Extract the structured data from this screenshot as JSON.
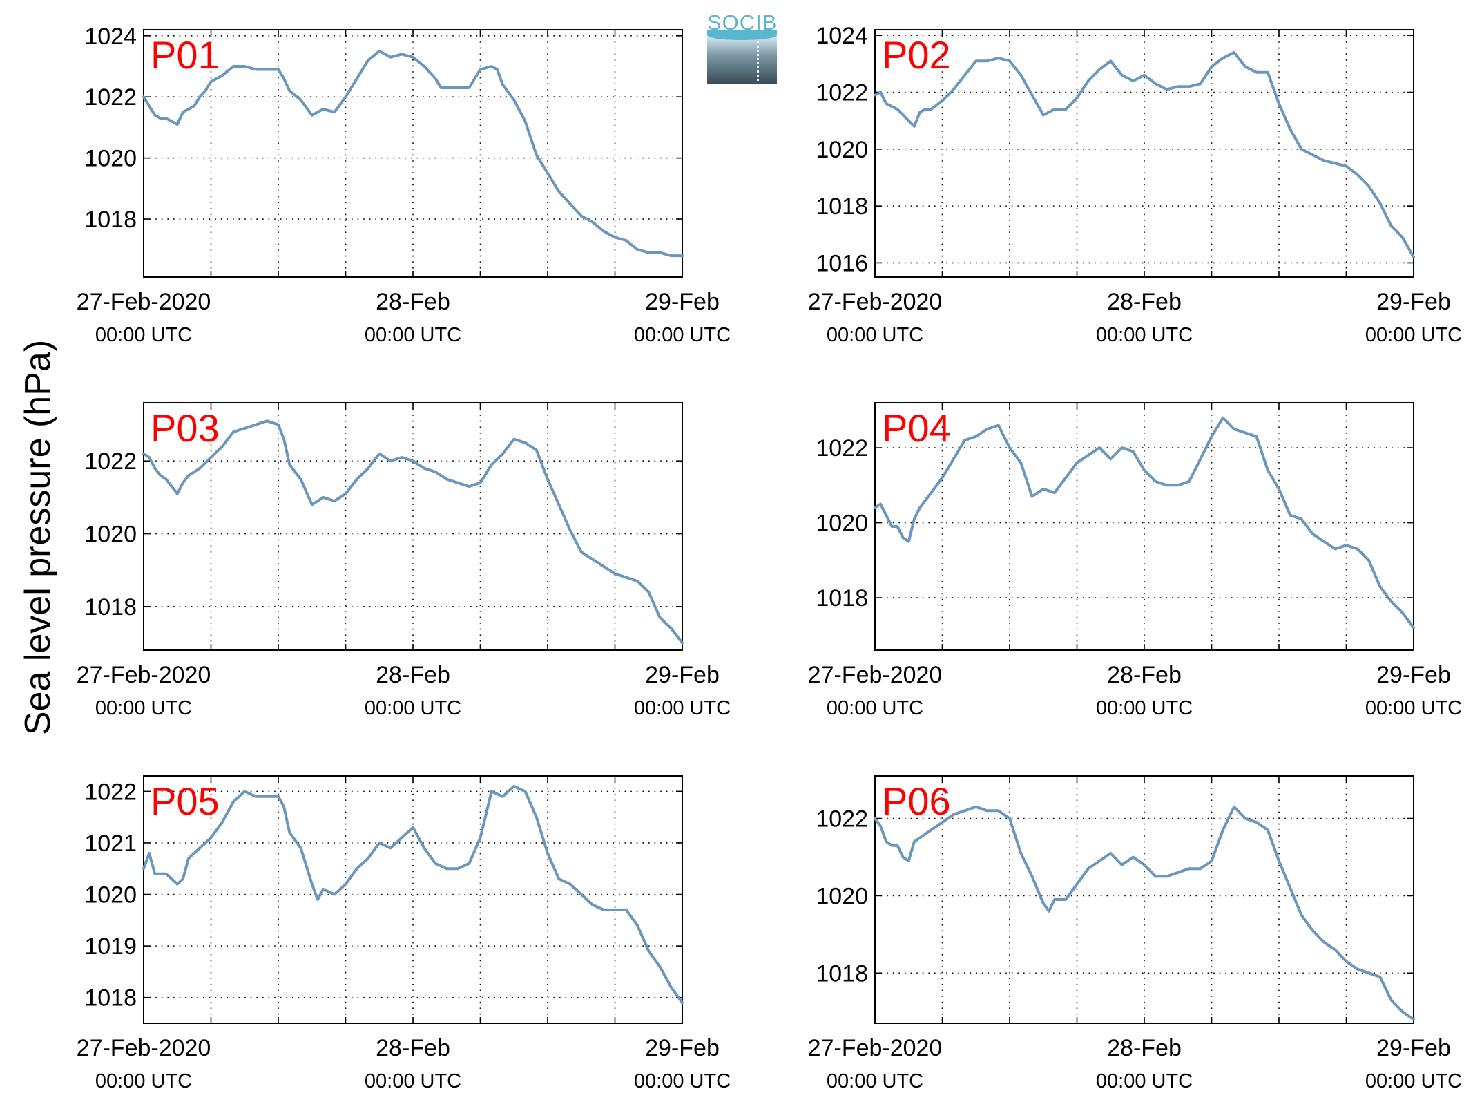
{
  "ylabel": "Sea level pressure (hPa)",
  "logo_text": "SOCIB",
  "colors": {
    "line": "#6b97bd",
    "panel_label": "#ff0000",
    "grid": "#000000"
  },
  "chart_data": [
    {
      "type": "line",
      "panel": "P01",
      "ylim": [
        1016.1,
        1024.2
      ],
      "yticks": [
        1018,
        1020,
        1022,
        1024
      ],
      "xlim": [
        0,
        48
      ],
      "xtick_labels": [
        {
          "x": 0,
          "date": "27-Feb-2020",
          "time": "00:00 UTC"
        },
        {
          "x": 24,
          "date": "28-Feb",
          "time": "00:00 UTC"
        },
        {
          "x": 48,
          "date": "29-Feb",
          "time": "00:00 UTC"
        }
      ],
      "x": [
        0,
        0.5,
        1,
        1.5,
        2,
        2.5,
        3,
        3.5,
        4,
        4.5,
        5,
        5.5,
        6,
        7,
        8,
        9,
        10,
        11,
        12,
        12.5,
        13,
        14,
        15,
        16,
        17,
        18,
        19,
        20,
        21,
        22,
        23,
        24,
        25,
        26,
        26.5,
        27,
        28,
        29,
        30,
        31,
        31.5,
        32,
        33,
        34,
        35,
        36,
        37,
        38,
        39,
        40,
        41,
        42,
        43,
        44,
        45,
        46,
        47,
        48
      ],
      "y": [
        1022,
        1021.7,
        1021.4,
        1021.3,
        1021.3,
        1021.2,
        1021.1,
        1021.5,
        1021.6,
        1021.7,
        1022,
        1022.2,
        1022.5,
        1022.7,
        1023,
        1023,
        1022.9,
        1022.9,
        1022.9,
        1022.6,
        1022.2,
        1021.9,
        1021.4,
        1021.6,
        1021.5,
        1022,
        1022.6,
        1023.2,
        1023.5,
        1023.3,
        1023.4,
        1023.3,
        1023,
        1022.6,
        1022.3,
        1022.3,
        1022.3,
        1022.3,
        1022.9,
        1023,
        1022.9,
        1022.4,
        1021.9,
        1021.2,
        1020.1,
        1019.5,
        1018.9,
        1018.5,
        1018.1,
        1017.9,
        1017.6,
        1017.4,
        1017.3,
        1017,
        1016.9,
        1016.9,
        1016.8,
        1016.8
      ]
    },
    {
      "type": "line",
      "panel": "P02",
      "ylim": [
        1015.5,
        1024.2
      ],
      "yticks": [
        1016,
        1018,
        1020,
        1022,
        1024
      ],
      "xlim": [
        0,
        48
      ],
      "xtick_labels": [
        {
          "x": 0,
          "date": "27-Feb-2020",
          "time": "00:00 UTC"
        },
        {
          "x": 24,
          "date": "28-Feb",
          "time": "00:00 UTC"
        },
        {
          "x": 48,
          "date": "29-Feb",
          "time": "00:00 UTC"
        }
      ],
      "x": [
        0,
        0.5,
        1,
        2,
        3,
        3.5,
        4,
        4.5,
        5,
        6,
        7,
        8,
        9,
        10,
        11,
        12,
        13,
        14,
        15,
        16,
        17,
        18,
        19,
        20,
        21,
        22,
        23,
        24,
        25,
        26,
        27,
        28,
        29,
        30,
        31,
        32,
        33,
        34,
        35,
        36,
        37,
        38,
        39,
        40,
        41,
        42,
        43,
        44,
        45,
        46,
        47,
        48
      ],
      "y": [
        1021.9,
        1022,
        1021.6,
        1021.4,
        1021,
        1020.8,
        1021.3,
        1021.4,
        1021.4,
        1021.7,
        1022.1,
        1022.6,
        1023.1,
        1023.1,
        1023.2,
        1023.1,
        1022.6,
        1021.9,
        1021.2,
        1021.4,
        1021.4,
        1021.8,
        1022.4,
        1022.8,
        1023.1,
        1022.6,
        1022.4,
        1022.6,
        1022.3,
        1022.1,
        1022.2,
        1022.2,
        1022.3,
        1022.9,
        1023.2,
        1023.4,
        1022.9,
        1022.7,
        1022.7,
        1021.6,
        1020.7,
        1020,
        1019.8,
        1019.6,
        1019.5,
        1019.4,
        1019.1,
        1018.7,
        1018.1,
        1017.3,
        1016.9,
        1016.2
      ]
    },
    {
      "type": "line",
      "panel": "P03",
      "ylim": [
        1016.8,
        1023.6
      ],
      "yticks": [
        1018,
        1020,
        1022
      ],
      "xlim": [
        0,
        48
      ],
      "xtick_labels": [
        {
          "x": 0,
          "date": "27-Feb-2020",
          "time": "00:00 UTC"
        },
        {
          "x": 24,
          "date": "28-Feb",
          "time": "00:00 UTC"
        },
        {
          "x": 48,
          "date": "29-Feb",
          "time": "00:00 UTC"
        }
      ],
      "x": [
        0,
        0.5,
        1,
        1.5,
        2,
        2.5,
        3,
        3.5,
        4,
        5,
        6,
        7,
        8,
        9,
        10,
        11,
        12,
        12.5,
        13,
        14,
        15,
        16,
        17,
        18,
        19,
        20,
        21,
        22,
        23,
        24,
        25,
        26,
        27,
        28,
        29,
        30,
        31,
        32,
        33,
        34,
        35,
        36,
        37,
        38,
        39,
        40,
        41,
        42,
        43,
        44,
        45,
        46,
        47,
        48
      ],
      "y": [
        1022.2,
        1022.1,
        1021.8,
        1021.6,
        1021.5,
        1021.3,
        1021.1,
        1021.4,
        1021.6,
        1021.8,
        1022.1,
        1022.4,
        1022.8,
        1022.9,
        1023,
        1023.1,
        1023,
        1022.6,
        1021.9,
        1021.5,
        1020.8,
        1021,
        1020.9,
        1021.1,
        1021.5,
        1021.8,
        1022.2,
        1022,
        1022.1,
        1022,
        1021.8,
        1021.7,
        1021.5,
        1021.4,
        1021.3,
        1021.4,
        1021.9,
        1022.2,
        1022.6,
        1022.5,
        1022.3,
        1021.5,
        1020.8,
        1020.1,
        1019.5,
        1019.3,
        1019.1,
        1018.9,
        1018.8,
        1018.7,
        1018.4,
        1017.7,
        1017.4,
        1017
      ]
    },
    {
      "type": "line",
      "panel": "P04",
      "ylim": [
        1016.6,
        1023.2
      ],
      "yticks": [
        1018,
        1020,
        1022
      ],
      "xlim": [
        0,
        48
      ],
      "xtick_labels": [
        {
          "x": 0,
          "date": "27-Feb-2020",
          "time": "00:00 UTC"
        },
        {
          "x": 24,
          "date": "28-Feb",
          "time": "00:00 UTC"
        },
        {
          "x": 48,
          "date": "29-Feb",
          "time": "00:00 UTC"
        }
      ],
      "x": [
        0,
        0.5,
        1,
        1.5,
        2,
        2.5,
        3,
        3.5,
        4,
        5,
        6,
        7,
        8,
        9,
        10,
        11,
        12,
        13,
        14,
        15,
        16,
        17,
        18,
        19,
        20,
        21,
        22,
        23,
        24,
        25,
        26,
        27,
        28,
        29,
        30,
        31,
        32,
        33,
        34,
        35,
        36,
        37,
        38,
        39,
        40,
        41,
        42,
        43,
        44,
        45,
        46,
        47,
        48
      ],
      "y": [
        1020.4,
        1020.5,
        1020.2,
        1019.9,
        1019.9,
        1019.6,
        1019.5,
        1020.1,
        1020.4,
        1020.8,
        1021.2,
        1021.7,
        1022.2,
        1022.3,
        1022.5,
        1022.6,
        1022,
        1021.6,
        1020.7,
        1020.9,
        1020.8,
        1021.2,
        1021.6,
        1021.8,
        1022,
        1021.7,
        1022,
        1021.9,
        1021.4,
        1021.1,
        1021,
        1021,
        1021.1,
        1021.7,
        1022.3,
        1022.8,
        1022.5,
        1022.4,
        1022.3,
        1021.4,
        1020.9,
        1020.2,
        1020.1,
        1019.7,
        1019.5,
        1019.3,
        1019.4,
        1019.3,
        1019,
        1018.3,
        1017.9,
        1017.6,
        1017.2
      ]
    },
    {
      "type": "line",
      "panel": "P05",
      "ylim": [
        1017.5,
        1022.3
      ],
      "yticks": [
        1018,
        1019,
        1020,
        1021,
        1022
      ],
      "xlim": [
        0,
        48
      ],
      "xtick_labels": [
        {
          "x": 0,
          "date": "27-Feb-2020",
          "time": "00:00 UTC"
        },
        {
          "x": 24,
          "date": "28-Feb",
          "time": "00:00 UTC"
        },
        {
          "x": 48,
          "date": "29-Feb",
          "time": "00:00 UTC"
        }
      ],
      "x": [
        0,
        0.5,
        1,
        1.5,
        2,
        2.5,
        3,
        3.5,
        4,
        4.5,
        5,
        5.5,
        6,
        7,
        8,
        9,
        10,
        11,
        12,
        12.5,
        13,
        14,
        15,
        15.5,
        16,
        17,
        18,
        19,
        20,
        21,
        22,
        23,
        24,
        25,
        26,
        27,
        28,
        29,
        30,
        31,
        32,
        33,
        34,
        35,
        36,
        37,
        38,
        39,
        40,
        41,
        42,
        43,
        44,
        45,
        46,
        47,
        48
      ],
      "y": [
        1020.5,
        1020.8,
        1020.4,
        1020.4,
        1020.4,
        1020.3,
        1020.2,
        1020.3,
        1020.7,
        1020.8,
        1020.9,
        1021,
        1021.1,
        1021.4,
        1021.8,
        1022,
        1021.9,
        1021.9,
        1021.9,
        1021.7,
        1021.2,
        1020.9,
        1020.2,
        1019.9,
        1020.1,
        1020,
        1020.2,
        1020.5,
        1020.7,
        1021,
        1020.9,
        1021.1,
        1021.3,
        1020.9,
        1020.6,
        1020.5,
        1020.5,
        1020.6,
        1021.1,
        1022,
        1021.9,
        1022.1,
        1022,
        1021.5,
        1020.8,
        1020.3,
        1020.2,
        1020,
        1019.8,
        1019.7,
        1019.7,
        1019.7,
        1019.4,
        1018.9,
        1018.6,
        1018.2,
        1017.9
      ]
    },
    {
      "type": "line",
      "panel": "P06",
      "ylim": [
        1016.7,
        1023.1
      ],
      "yticks": [
        1018,
        1020,
        1022
      ],
      "xlim": [
        0,
        48
      ],
      "xtick_labels": [
        {
          "x": 0,
          "date": "27-Feb-2020",
          "time": "00:00 UTC"
        },
        {
          "x": 24,
          "date": "28-Feb",
          "time": "00:00 UTC"
        },
        {
          "x": 48,
          "date": "29-Feb",
          "time": "00:00 UTC"
        }
      ],
      "x": [
        0,
        0.5,
        1,
        1.5,
        2,
        2.5,
        3,
        3.5,
        4,
        5,
        6,
        7,
        8,
        9,
        10,
        11,
        12,
        13,
        14,
        15,
        15.5,
        16,
        17,
        18,
        19,
        20,
        21,
        22,
        23,
        24,
        25,
        26,
        27,
        28,
        29,
        30,
        31,
        32,
        33,
        34,
        35,
        36,
        37,
        38,
        39,
        40,
        41,
        42,
        43,
        44,
        45,
        46,
        47,
        48
      ],
      "y": [
        1022,
        1021.8,
        1021.4,
        1021.3,
        1021.3,
        1021,
        1020.9,
        1021.4,
        1021.5,
        1021.7,
        1021.9,
        1022.1,
        1022.2,
        1022.3,
        1022.2,
        1022.2,
        1022,
        1021.1,
        1020.5,
        1019.8,
        1019.6,
        1019.9,
        1019.9,
        1020.3,
        1020.7,
        1020.9,
        1021.1,
        1020.8,
        1021,
        1020.8,
        1020.5,
        1020.5,
        1020.6,
        1020.7,
        1020.7,
        1020.9,
        1021.7,
        1022.3,
        1022,
        1021.9,
        1021.7,
        1020.9,
        1020.2,
        1019.5,
        1019.1,
        1018.8,
        1018.6,
        1018.3,
        1018.1,
        1018,
        1017.9,
        1017.3,
        1017,
        1016.8
      ]
    }
  ]
}
